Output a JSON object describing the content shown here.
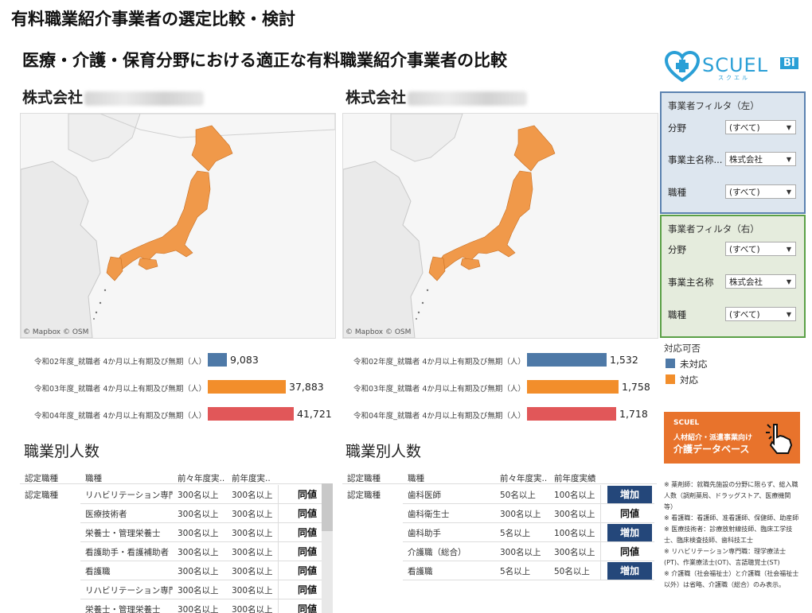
{
  "page": {
    "title": "有料職業紹介事業者の選定比較・検討",
    "subtitle": "医療・介護・保育分野における適正な有料職業紹介事業者の比較"
  },
  "logo": {
    "text": "SCUEL",
    "kana": "スクエル",
    "badge": "BI"
  },
  "left": {
    "company": "株式会社",
    "map_attribution": "© Mapbox  © OSM",
    "bars": {
      "labels": [
        "令和02年度_就職者 4か月以上有期及び無期（人）",
        "令和03年度_就職者 4か月以上有期及び無期（人）",
        "令和04年度_就職者 4か月以上有期及び無期（人）"
      ],
      "values": [
        9083,
        37883,
        41721
      ],
      "display": [
        "9,083",
        "37,883",
        "41,721"
      ]
    },
    "table": {
      "title": "職業別人数",
      "headers": [
        "認定職種",
        "職種",
        "前々年度実..",
        "前年度実.."
      ],
      "category": "認定職種",
      "rows": [
        {
          "job": "リハビリテーション専門職",
          "prev2": "300名以上",
          "prev1": "300名以上",
          "status": "同値"
        },
        {
          "job": "医療技術者",
          "prev2": "300名以上",
          "prev1": "300名以上",
          "status": "同値"
        },
        {
          "job": "栄養士・管理栄養士",
          "prev2": "300名以上",
          "prev1": "300名以上",
          "status": "同値"
        },
        {
          "job": "看護助手・看護補助者",
          "prev2": "300名以上",
          "prev1": "300名以上",
          "status": "同値"
        },
        {
          "job": "看護職",
          "prev2": "300名以上",
          "prev1": "300名以上",
          "status": "同値"
        },
        {
          "job": "リハビリテーション専門職",
          "prev2": "300名以上",
          "prev1": "300名以上",
          "status": "同値"
        },
        {
          "job": "栄養士・管理栄養士",
          "prev2": "300名以上",
          "prev1": "300名以上",
          "status": "同値"
        }
      ]
    }
  },
  "right": {
    "company": "株式会社",
    "map_attribution": "© Mapbox  © OSM",
    "bars": {
      "labels": [
        "令和02年度_就職者 4か月以上有期及び無期（人）",
        "令和03年度_就職者 4か月以上有期及び無期（人）",
        "令和04年度_就職者 4か月以上有期及び無期（人）"
      ],
      "values": [
        1532,
        1758,
        1718
      ],
      "display": [
        "1,532",
        "1,758",
        "1,718"
      ]
    },
    "table": {
      "title": "職業別人数",
      "headers": [
        "認定職種",
        "職種",
        "前々年度実..",
        "前年度実績"
      ],
      "category": "認定職種",
      "rows": [
        {
          "job": "歯科医師",
          "prev2": "50名以上",
          "prev1": "100名以上",
          "status": "増加"
        },
        {
          "job": "歯科衛生士",
          "prev2": "300名以上",
          "prev1": "300名以上",
          "status": "同値"
        },
        {
          "job": "歯科助手",
          "prev2": "5名以上",
          "prev1": "100名以上",
          "status": "増加"
        },
        {
          "job": "介護職（総合）",
          "prev2": "300名以上",
          "prev1": "300名以上",
          "status": "同値"
        },
        {
          "job": "看護職",
          "prev2": "5名以上",
          "prev1": "50名以上",
          "status": "増加"
        }
      ]
    }
  },
  "bar_colors": [
    "#4e79a7",
    "#f28e2b",
    "#e15759"
  ],
  "filter_left": {
    "title": "事業者フィルタ（左）",
    "fields": [
      {
        "label": "分野",
        "value": "(すべて)"
      },
      {
        "label": "事業主名称...",
        "value": "株式会社"
      },
      {
        "label": "職種",
        "value": "(すべて)"
      }
    ],
    "border": "#5b82b0",
    "bg": "#dde6ef"
  },
  "filter_right": {
    "title": "事業者フィルタ（右）",
    "fields": [
      {
        "label": "分野",
        "value": "(すべて)"
      },
      {
        "label": "事業主名称",
        "value": "株式会社"
      },
      {
        "label": "職種",
        "value": "(すべて)"
      }
    ],
    "border": "#5aa046",
    "bg": "#e5ecdd"
  },
  "legend": {
    "title": "対応可否",
    "items": [
      {
        "label": "未対応",
        "color": "#4e79a7"
      },
      {
        "label": "対応",
        "color": "#f28e2b"
      }
    ]
  },
  "banner": {
    "brand": "SCUEL",
    "line1": "人材紹介・派遣事業向け",
    "line2": "介護データベース",
    "bg": "#e8732c"
  },
  "notes": [
    "※ 薬剤師：就職先施設の分野に限らず、総入職",
    "人数（調剤薬局、ドラッグストア、医療機関",
    "等）",
    "※ 看護職：看護師、准看護師、保健師、助産師",
    "※ 医療技術者：診療放射線技師、臨床工学技",
    "士、臨床検査技師、歯科技工士",
    "※ リハビリテーション専門職：理学療法士",
    "(PT)、作業療法士(OT)、言語聴覚士(ST)",
    "※ 介護職（社会福祉士）と介護職（社会福祉士",
    "以外）は省略、介護職（総合）のみ表示。"
  ]
}
